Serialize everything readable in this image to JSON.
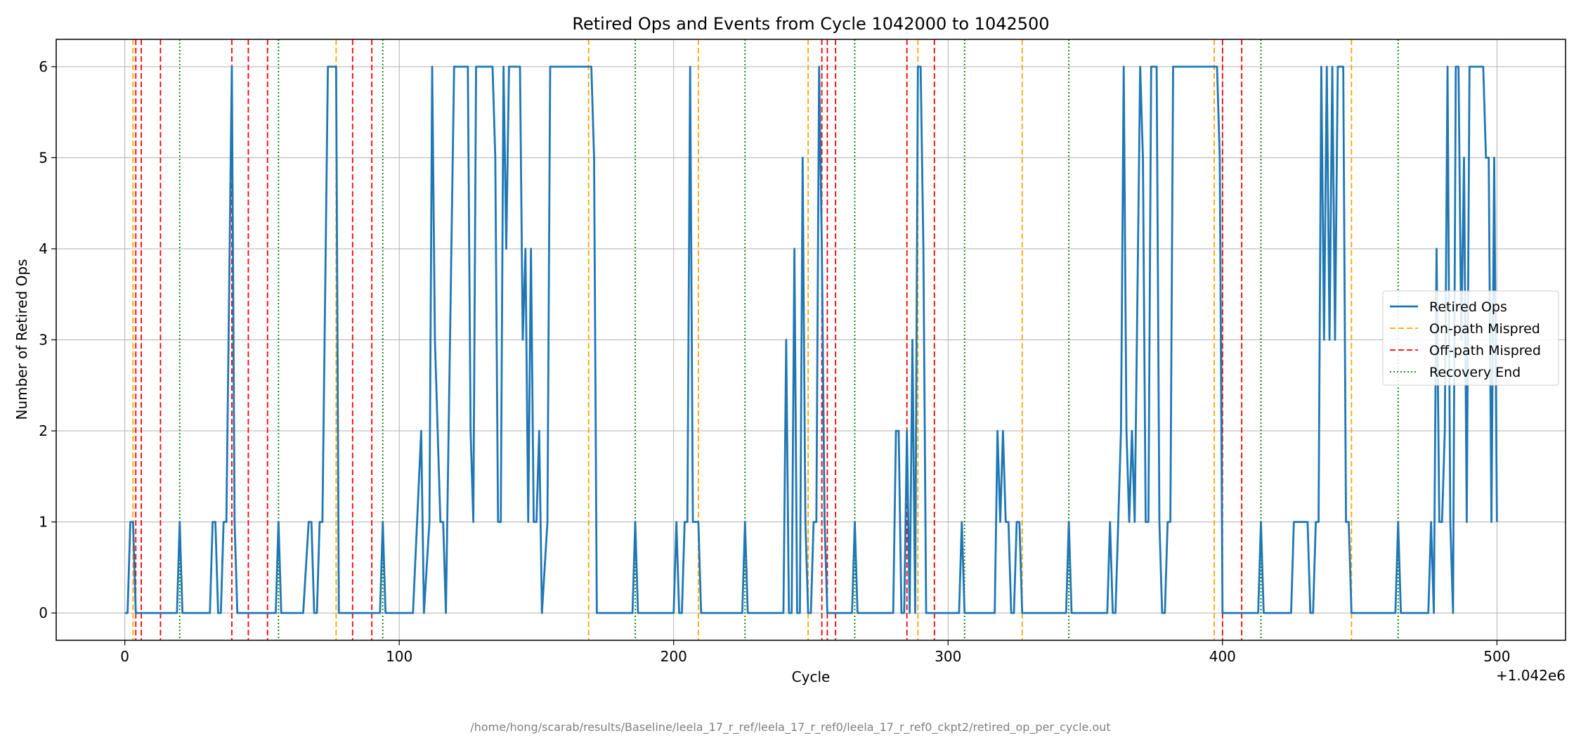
{
  "chart_data": {
    "type": "line",
    "title": "Retired Ops and Events from Cycle 1042000 to 1042500",
    "xlabel": "Cycle",
    "ylabel": "Number of Retired Ops",
    "x_offset_label": "+1.042e6",
    "xlim": [
      -25,
      525
    ],
    "ylim": [
      -0.3,
      6.3
    ],
    "xticks": [
      0,
      100,
      200,
      300,
      400,
      500
    ],
    "yticks": [
      0,
      1,
      2,
      3,
      4,
      5,
      6
    ],
    "grid": true,
    "legend_position": "center-right",
    "series": [
      {
        "name": "Retired Ops",
        "style": "solid",
        "color": "#1f77b4",
        "points": [
          [
            0,
            0
          ],
          [
            1,
            0
          ],
          [
            2,
            1
          ],
          [
            3,
            1
          ],
          [
            4,
            0
          ],
          [
            5,
            0
          ],
          [
            10,
            0
          ],
          [
            15,
            0
          ],
          [
            19,
            0
          ],
          [
            20,
            1
          ],
          [
            21,
            0
          ],
          [
            25,
            0
          ],
          [
            31,
            0
          ],
          [
            32,
            1
          ],
          [
            33,
            1
          ],
          [
            34,
            0
          ],
          [
            35,
            0
          ],
          [
            36,
            1
          ],
          [
            37,
            1
          ],
          [
            39,
            6
          ],
          [
            40,
            1
          ],
          [
            41,
            0
          ],
          [
            45,
            0
          ],
          [
            50,
            0
          ],
          [
            55,
            0
          ],
          [
            56,
            1
          ],
          [
            57,
            0
          ],
          [
            60,
            0
          ],
          [
            65,
            0
          ],
          [
            67,
            1
          ],
          [
            68,
            1
          ],
          [
            69,
            0
          ],
          [
            70,
            0
          ],
          [
            71,
            1
          ],
          [
            72,
            1
          ],
          [
            74,
            6
          ],
          [
            75,
            6
          ],
          [
            76,
            6
          ],
          [
            77,
            6
          ],
          [
            78,
            0
          ],
          [
            80,
            0
          ],
          [
            85,
            0
          ],
          [
            90,
            0
          ],
          [
            93,
            0
          ],
          [
            94,
            1
          ],
          [
            95,
            0
          ],
          [
            100,
            0
          ],
          [
            105,
            0
          ],
          [
            108,
            2
          ],
          [
            109,
            0
          ],
          [
            111,
            1
          ],
          [
            112,
            6
          ],
          [
            113,
            3
          ],
          [
            115,
            1
          ],
          [
            116,
            1
          ],
          [
            117,
            0
          ],
          [
            120,
            6
          ],
          [
            121,
            6
          ],
          [
            125,
            6
          ],
          [
            126,
            2
          ],
          [
            127,
            1
          ],
          [
            128,
            6
          ],
          [
            130,
            6
          ],
          [
            132,
            6
          ],
          [
            134,
            6
          ],
          [
            135,
            5
          ],
          [
            136,
            1
          ],
          [
            137,
            1
          ],
          [
            138,
            6
          ],
          [
            139,
            4
          ],
          [
            140,
            6
          ],
          [
            142,
            6
          ],
          [
            144,
            6
          ],
          [
            145,
            3
          ],
          [
            146,
            4
          ],
          [
            147,
            1
          ],
          [
            148,
            4
          ],
          [
            149,
            1
          ],
          [
            150,
            1
          ],
          [
            151,
            2
          ],
          [
            152,
            0
          ],
          [
            154,
            1
          ],
          [
            155,
            6
          ],
          [
            160,
            6
          ],
          [
            165,
            6
          ],
          [
            170,
            6
          ],
          [
            171,
            5
          ],
          [
            172,
            0
          ],
          [
            175,
            0
          ],
          [
            180,
            0
          ],
          [
            185,
            0
          ],
          [
            186,
            1
          ],
          [
            187,
            0
          ],
          [
            190,
            0
          ],
          [
            195,
            0
          ],
          [
            200,
            0
          ],
          [
            201,
            1
          ],
          [
            202,
            0
          ],
          [
            203,
            0
          ],
          [
            204,
            1
          ],
          [
            205,
            1
          ],
          [
            206,
            6
          ],
          [
            207,
            1
          ],
          [
            208,
            1
          ],
          [
            209,
            1
          ],
          [
            210,
            0
          ],
          [
            215,
            0
          ],
          [
            220,
            0
          ],
          [
            225,
            0
          ],
          [
            226,
            1
          ],
          [
            227,
            0
          ],
          [
            230,
            0
          ],
          [
            235,
            0
          ],
          [
            240,
            0
          ],
          [
            241,
            3
          ],
          [
            242,
            0
          ],
          [
            243,
            0
          ],
          [
            244,
            4
          ],
          [
            245,
            0
          ],
          [
            246,
            0
          ],
          [
            247,
            5
          ],
          [
            248,
            1
          ],
          [
            249,
            0
          ],
          [
            250,
            0
          ],
          [
            251,
            1
          ],
          [
            252,
            1
          ],
          [
            253,
            6
          ],
          [
            254,
            4
          ],
          [
            255,
            1
          ],
          [
            256,
            0
          ],
          [
            260,
            0
          ],
          [
            265,
            0
          ],
          [
            266,
            1
          ],
          [
            267,
            0
          ],
          [
            270,
            0
          ],
          [
            275,
            0
          ],
          [
            280,
            0
          ],
          [
            281,
            2
          ],
          [
            282,
            2
          ],
          [
            283,
            0
          ],
          [
            284,
            0
          ],
          [
            285,
            2
          ],
          [
            286,
            0
          ],
          [
            287,
            3
          ],
          [
            288,
            0
          ],
          [
            289,
            6
          ],
          [
            290,
            6
          ],
          [
            291,
            4
          ],
          [
            292,
            0
          ],
          [
            295,
            0
          ],
          [
            300,
            0
          ],
          [
            304,
            0
          ],
          [
            305,
            1
          ],
          [
            306,
            0
          ],
          [
            310,
            0
          ],
          [
            315,
            0
          ],
          [
            317,
            0
          ],
          [
            318,
            2
          ],
          [
            319,
            1
          ],
          [
            320,
            2
          ],
          [
            321,
            1
          ],
          [
            322,
            1
          ],
          [
            323,
            0
          ],
          [
            324,
            0
          ],
          [
            325,
            1
          ],
          [
            326,
            1
          ],
          [
            327,
            0
          ],
          [
            330,
            0
          ],
          [
            335,
            0
          ],
          [
            340,
            0
          ],
          [
            343,
            0
          ],
          [
            344,
            1
          ],
          [
            345,
            0
          ],
          [
            350,
            0
          ],
          [
            355,
            0
          ],
          [
            358,
            0
          ],
          [
            359,
            1
          ],
          [
            360,
            0
          ],
          [
            361,
            0
          ],
          [
            362,
            1
          ],
          [
            363,
            2
          ],
          [
            364,
            6
          ],
          [
            365,
            2
          ],
          [
            366,
            1
          ],
          [
            367,
            2
          ],
          [
            368,
            1
          ],
          [
            370,
            6
          ],
          [
            371,
            5
          ],
          [
            372,
            1
          ],
          [
            373,
            1
          ],
          [
            374,
            6
          ],
          [
            376,
            6
          ],
          [
            377,
            1
          ],
          [
            378,
            0
          ],
          [
            379,
            0
          ],
          [
            380,
            1
          ],
          [
            381,
            1
          ],
          [
            382,
            6
          ],
          [
            385,
            6
          ],
          [
            390,
            6
          ],
          [
            395,
            6
          ],
          [
            398,
            6
          ],
          [
            399,
            5
          ],
          [
            400,
            0
          ],
          [
            405,
            0
          ],
          [
            410,
            0
          ],
          [
            413,
            0
          ],
          [
            414,
            1
          ],
          [
            415,
            0
          ],
          [
            420,
            0
          ],
          [
            425,
            0
          ],
          [
            426,
            1
          ],
          [
            430,
            1
          ],
          [
            431,
            1
          ],
          [
            432,
            0
          ],
          [
            433,
            0
          ],
          [
            434,
            1
          ],
          [
            435,
            1
          ],
          [
            436,
            6
          ],
          [
            437,
            3
          ],
          [
            438,
            6
          ],
          [
            439,
            3
          ],
          [
            440,
            6
          ],
          [
            441,
            3
          ],
          [
            442,
            6
          ],
          [
            443,
            6
          ],
          [
            444,
            6
          ],
          [
            445,
            1
          ],
          [
            446,
            1
          ],
          [
            447,
            0
          ],
          [
            450,
            0
          ],
          [
            455,
            0
          ],
          [
            460,
            0
          ],
          [
            463,
            0
          ],
          [
            464,
            1
          ],
          [
            465,
            0
          ],
          [
            470,
            0
          ],
          [
            475,
            0
          ],
          [
            476,
            1
          ],
          [
            477,
            0
          ],
          [
            478,
            4
          ],
          [
            479,
            1
          ],
          [
            480,
            1
          ],
          [
            481,
            2
          ],
          [
            482,
            6
          ],
          [
            483,
            1
          ],
          [
            484,
            0
          ],
          [
            485,
            6
          ],
          [
            486,
            6
          ],
          [
            487,
            3
          ],
          [
            488,
            5
          ],
          [
            489,
            1
          ],
          [
            490,
            6
          ],
          [
            495,
            6
          ],
          [
            496,
            5
          ],
          [
            497,
            5
          ],
          [
            498,
            1
          ],
          [
            499,
            5
          ],
          [
            500,
            1
          ]
        ]
      },
      {
        "name": "On-path Mispred",
        "style": "dashed",
        "color": "#ffa500",
        "lines": [
          3,
          77,
          169,
          209,
          249,
          289,
          327,
          397,
          447
        ]
      },
      {
        "name": "Off-path Mispred",
        "style": "dashed",
        "color": "#ff0000",
        "lines": [
          4,
          6,
          13,
          39,
          45,
          52,
          83,
          90,
          254,
          256,
          259,
          285,
          295,
          400,
          407
        ]
      },
      {
        "name": "Recovery End",
        "style": "dotted",
        "color": "#008000",
        "lines": [
          20,
          56,
          94,
          186,
          226,
          266,
          306,
          344,
          414,
          464
        ]
      }
    ]
  },
  "footer_path": "/home/hong/scarab/results/Baseline/leela_17_r_ref/leela_17_r_ref0/leela_17_r_ref0_ckpt2/retired_op_per_cycle.out"
}
